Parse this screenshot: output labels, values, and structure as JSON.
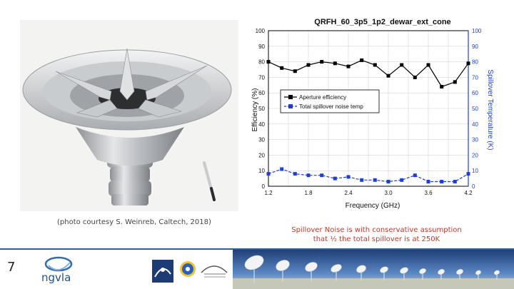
{
  "photo": {
    "caption": "(photo courtesy S. Weinreb, Caltech,  2018)"
  },
  "chart_data": {
    "type": "line",
    "title": "QRFH_60_3p5_1p2_dewar_ext_cone",
    "xlabel": "Frequency (GHz)",
    "ylabel": "Efficiency (%)",
    "ylabel_right": "Spillover Temperature (K)",
    "xlim": [
      1.2,
      4.2
    ],
    "ylim": [
      0,
      100
    ],
    "ylim_right": [
      0,
      100
    ],
    "x_ticks": [
      "1.2",
      "1.5",
      "1.8",
      "2.1",
      "2.4",
      "2.7",
      "3.0",
      "3.3",
      "3.6",
      "3.9",
      "4.2"
    ],
    "x_tick_labels": [
      "1.2",
      "1.8",
      "2.4",
      "3.0",
      "3.6",
      "4.2"
    ],
    "y_ticks": [
      "0",
      "10",
      "20",
      "30",
      "40",
      "50",
      "60",
      "70",
      "80",
      "90",
      "100"
    ],
    "grid": true,
    "legend_position": "center-left",
    "series": [
      {
        "name": "Aperture efficiency",
        "axis": "left",
        "color": "#000000",
        "marker": "square",
        "x": [
          1.2,
          1.4,
          1.6,
          1.8,
          2.0,
          2.2,
          2.4,
          2.6,
          2.8,
          3.0,
          3.2,
          3.4,
          3.6,
          3.8,
          4.0,
          4.2
        ],
        "y": [
          80,
          76,
          74,
          78,
          80,
          79,
          77,
          81,
          78,
          71,
          78,
          70,
          78,
          64,
          67,
          79
        ]
      },
      {
        "name": "Total spillover noise temp",
        "axis": "right",
        "color": "#1f3fd4",
        "marker": "square",
        "x": [
          1.2,
          1.4,
          1.6,
          1.8,
          2.0,
          2.2,
          2.4,
          2.6,
          2.8,
          3.0,
          3.2,
          3.4,
          3.6,
          3.8,
          4.0,
          4.2
        ],
        "y": [
          8,
          11,
          8,
          7,
          7,
          5,
          6,
          4,
          4,
          3,
          4,
          7,
          3,
          3,
          3,
          8
        ]
      }
    ]
  },
  "note": {
    "line1": "Spillover Noise is with conservative assumption",
    "line2": "that ½  the total spillover is at 250K"
  },
  "footer": {
    "page_number": "7",
    "ngvla_logo_text": "ngvla",
    "rule_color": "#2f5f95"
  }
}
